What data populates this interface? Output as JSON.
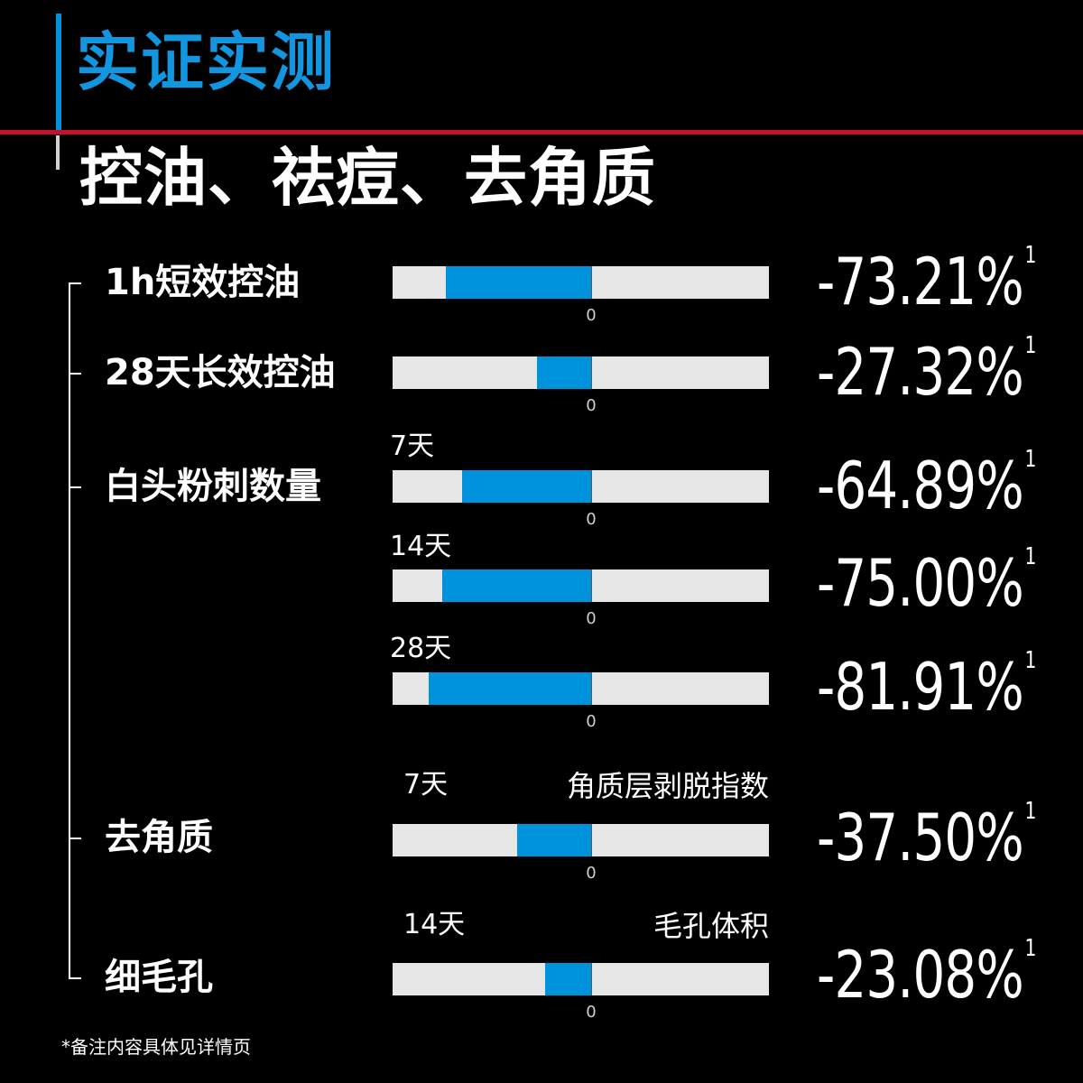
{
  "header": {
    "title": "实证实测",
    "subtitle": "控油、祛痘、去角质"
  },
  "colors": {
    "accent_blue": "#0093dd",
    "title_blue": "#1296e0",
    "rule_red": "#c8102e",
    "track_gray": "#e6e6e6",
    "background": "#000000"
  },
  "chart_data": {
    "type": "bar",
    "zero_label": "0",
    "footnote_mark": "1",
    "rows": [
      {
        "category": "1h短效控油",
        "sublabel": "",
        "metric": "",
        "value": -73.21,
        "value_text": "-73.21%"
      },
      {
        "category": "28天长效控油",
        "sublabel": "",
        "metric": "",
        "value": -27.32,
        "value_text": "-27.32%"
      },
      {
        "category": "白头粉刺数量",
        "sublabel": "7天",
        "metric": "",
        "value": -64.89,
        "value_text": "-64.89%"
      },
      {
        "category": "",
        "sublabel": "14天",
        "metric": "",
        "value": -75.0,
        "value_text": "-75.00%"
      },
      {
        "category": "",
        "sublabel": "28天",
        "metric": "",
        "value": -81.91,
        "value_text": "-81.91%"
      },
      {
        "category": "去角质",
        "sublabel": "7天",
        "metric": "角质层剥脱指数",
        "value": -37.5,
        "value_text": "-37.50%"
      },
      {
        "category": "细毛孔",
        "sublabel": "14天",
        "metric": "毛孔体积",
        "value": -23.08,
        "value_text": "-23.08%"
      }
    ],
    "xlim": [
      -100,
      100
    ]
  },
  "footnote": "*备注内容具体见详情页"
}
